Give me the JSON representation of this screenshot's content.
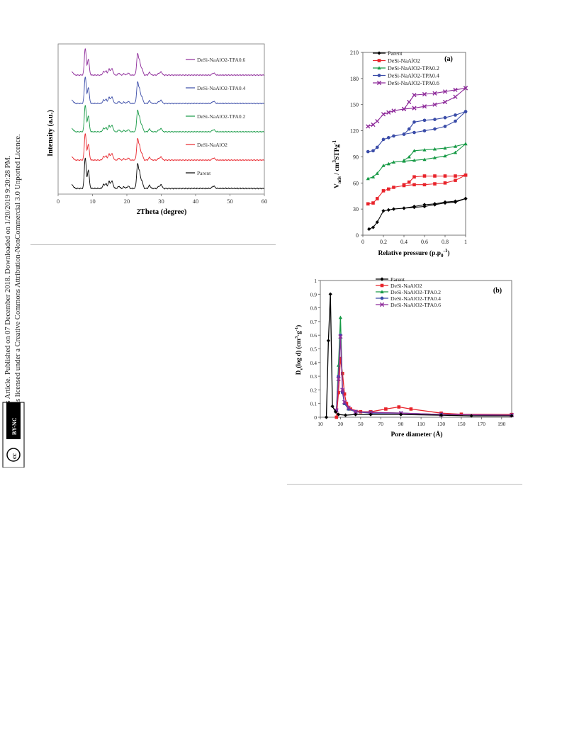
{
  "side_notice": {
    "line1": "Open Access Article. Published on 07 December 2018. Downloaded on 1/20/2019 9:20:28 PM.",
    "line2": "This article is licensed under a Creative Commons Attribution-NonCommercial 3.0 Unported Licence.",
    "badge_cc": "cc",
    "badge_by": "BY-NC"
  },
  "chart_data": [
    {
      "type": "line",
      "title": "",
      "xlabel": "2Theta (degree)",
      "ylabel": "Intensity (a.u.)",
      "xlim": [
        0,
        60
      ],
      "xticks": [
        0,
        10,
        20,
        30,
        40,
        50,
        60
      ],
      "grid": false,
      "peaks_2theta": [
        7.9,
        8.8,
        13.2,
        13.9,
        14.8,
        15.5,
        15.9,
        17.7,
        19.2,
        20.4,
        23.1,
        23.7,
        24.4,
        26.6,
        29.3,
        30.0,
        45.0,
        45.5
      ],
      "peak_rel_intensity": [
        1.0,
        0.6,
        0.12,
        0.15,
        0.22,
        0.18,
        0.12,
        0.07,
        0.05,
        0.08,
        0.75,
        0.5,
        0.25,
        0.1,
        0.07,
        0.12,
        0.06,
        0.05
      ],
      "series": [
        {
          "name": "Parent",
          "color": "#000000"
        },
        {
          "name": "DeSi-NaAlO2",
          "color": "#e8242b"
        },
        {
          "name": "DeSi-NaAlO2-TPA0.2",
          "color": "#179a46"
        },
        {
          "name": "DeSi-NaAlO2-TPA0.4",
          "color": "#3a4ca8"
        },
        {
          "name": "DeSi-NaAlO2-TPA0.6",
          "color": "#8e2b9a"
        }
      ]
    },
    {
      "type": "line",
      "title": "(a)",
      "xlabel_main": "Relative pressure (p.p",
      "xlabel_sub": "0",
      "xlabel_sup": "-1",
      "xlabel_end": ")",
      "ylabel_main": "V",
      "ylabel_sub": "ads",
      "ylabel_rest": " / cm",
      "ylabel_sup3": "3",
      "ylabel_stp": "STPg",
      "ylabel_sup1": "-1",
      "xlim": [
        0,
        1
      ],
      "ylim": [
        0,
        210
      ],
      "xticks": [
        0,
        0.2,
        0.4,
        0.6,
        0.8,
        1
      ],
      "yticks": [
        0,
        30,
        60,
        90,
        120,
        150,
        180,
        210
      ],
      "grid": false,
      "legend": "top-left",
      "series": [
        {
          "name": "Parent",
          "color": "#000000",
          "marker": "diamond",
          "adsorption": [
            [
              0.06,
              7
            ],
            [
              0.1,
              9
            ],
            [
              0.14,
              15
            ],
            [
              0.2,
              28
            ],
            [
              0.25,
              29
            ],
            [
              0.3,
              30
            ],
            [
              0.4,
              31
            ],
            [
              0.5,
              32
            ],
            [
              0.6,
              33
            ],
            [
              0.7,
              35
            ],
            [
              0.8,
              37
            ],
            [
              0.9,
              38
            ],
            [
              1.0,
              42
            ]
          ],
          "desorption": [
            [
              1.0,
              42
            ],
            [
              0.9,
              39
            ],
            [
              0.8,
              38
            ],
            [
              0.7,
              36
            ],
            [
              0.6,
              35
            ],
            [
              0.5,
              33
            ],
            [
              0.4,
              31
            ]
          ]
        },
        {
          "name": "DeSi-NaAlO2",
          "color": "#e8242b",
          "marker": "square",
          "adsorption": [
            [
              0.05,
              36
            ],
            [
              0.1,
              37
            ],
            [
              0.14,
              42
            ],
            [
              0.2,
              51
            ],
            [
              0.25,
              53
            ],
            [
              0.3,
              55
            ],
            [
              0.4,
              57
            ],
            [
              0.5,
              58
            ],
            [
              0.6,
              58
            ],
            [
              0.7,
              59
            ],
            [
              0.8,
              60
            ],
            [
              0.9,
              63
            ],
            [
              1.0,
              69
            ]
          ],
          "desorption": [
            [
              1.0,
              69
            ],
            [
              0.9,
              68
            ],
            [
              0.8,
              68
            ],
            [
              0.7,
              68
            ],
            [
              0.6,
              68
            ],
            [
              0.5,
              67
            ],
            [
              0.45,
              61
            ],
            [
              0.4,
              58
            ]
          ]
        },
        {
          "name": "DeSi-NaAlO2-TPA0.2",
          "color": "#179a46",
          "marker": "triangle",
          "adsorption": [
            [
              0.05,
              65
            ],
            [
              0.1,
              67
            ],
            [
              0.14,
              71
            ],
            [
              0.2,
              80
            ],
            [
              0.25,
              82
            ],
            [
              0.3,
              84
            ],
            [
              0.4,
              85
            ],
            [
              0.5,
              86
            ],
            [
              0.6,
              87
            ],
            [
              0.7,
              89
            ],
            [
              0.8,
              91
            ],
            [
              0.9,
              95
            ],
            [
              1.0,
              105
            ]
          ],
          "desorption": [
            [
              1.0,
              105
            ],
            [
              0.9,
              102
            ],
            [
              0.8,
              100
            ],
            [
              0.7,
              99
            ],
            [
              0.6,
              98
            ],
            [
              0.5,
              97
            ],
            [
              0.45,
              90
            ],
            [
              0.4,
              86
            ]
          ]
        },
        {
          "name": "DeSi-NaAlO2-TPA0.4",
          "color": "#3a4ca8",
          "marker": "circle",
          "adsorption": [
            [
              0.05,
              96
            ],
            [
              0.1,
              97
            ],
            [
              0.14,
              101
            ],
            [
              0.2,
              110
            ],
            [
              0.25,
              112
            ],
            [
              0.3,
              114
            ],
            [
              0.4,
              116
            ],
            [
              0.5,
              118
            ],
            [
              0.6,
              120
            ],
            [
              0.7,
              122
            ],
            [
              0.8,
              125
            ],
            [
              0.9,
              131
            ],
            [
              1.0,
              142
            ]
          ],
          "desorption": [
            [
              1.0,
              142
            ],
            [
              0.9,
              138
            ],
            [
              0.8,
              135
            ],
            [
              0.7,
              133
            ],
            [
              0.6,
              132
            ],
            [
              0.5,
              130
            ],
            [
              0.45,
              122
            ],
            [
              0.4,
              116
            ]
          ]
        },
        {
          "name": "DeSi-NaAlO2-TPA0.6",
          "color": "#8e2b9a",
          "marker": "cross",
          "adsorption": [
            [
              0.05,
              125
            ],
            [
              0.1,
              127
            ],
            [
              0.14,
              131
            ],
            [
              0.2,
              139
            ],
            [
              0.25,
              141
            ],
            [
              0.3,
              143
            ],
            [
              0.4,
              145
            ],
            [
              0.5,
              146
            ],
            [
              0.6,
              148
            ],
            [
              0.7,
              150
            ],
            [
              0.8,
              153
            ],
            [
              0.9,
              159
            ],
            [
              1.0,
              169
            ]
          ],
          "desorption": [
            [
              1.0,
              169
            ],
            [
              0.9,
              167
            ],
            [
              0.8,
              165
            ],
            [
              0.7,
              163
            ],
            [
              0.6,
              162
            ],
            [
              0.5,
              161
            ],
            [
              0.45,
              153
            ],
            [
              0.4,
              145
            ]
          ]
        }
      ]
    },
    {
      "type": "line",
      "title": "(b)",
      "xlabel": "Pore diameter (Å)",
      "ylabel_main": "D",
      "ylabel_sub": "v",
      "ylabel_mid": "(log d) (cm",
      "ylabel_sup3": "3",
      "ylabel_dot": "·g",
      "ylabel_sup1": "-1",
      "ylabel_end": ")",
      "xlim": [
        10,
        200
      ],
      "ylim": [
        0,
        1
      ],
      "xticks": [
        10,
        30,
        50,
        70,
        90,
        110,
        130,
        150,
        170,
        190
      ],
      "yticks": [
        0,
        0.1,
        0.2,
        0.3,
        0.4,
        0.5,
        0.6,
        0.7,
        0.8,
        0.9,
        1
      ],
      "grid": false,
      "legend": "top-center",
      "series": [
        {
          "name": "Parent",
          "color": "#000000",
          "marker": "diamond",
          "points": [
            [
              16,
              0
            ],
            [
              18,
              0.56
            ],
            [
              20,
              0.9
            ],
            [
              22,
              0.08
            ],
            [
              25,
              0.04
            ],
            [
              28,
              0.02
            ],
            [
              35,
              0.015
            ],
            [
              45,
              0.02
            ],
            [
              60,
              0.02
            ],
            [
              90,
              0.02
            ],
            [
              130,
              0.015
            ],
            [
              160,
              0.01
            ],
            [
              200,
              0.01
            ]
          ]
        },
        {
          "name": "DeSi-NaAlO2",
          "color": "#e8242b",
          "marker": "square",
          "points": [
            [
              26,
              0.0
            ],
            [
              28,
              0.18
            ],
            [
              30,
              0.43
            ],
            [
              32,
              0.32
            ],
            [
              34,
              0.17
            ],
            [
              36,
              0.1
            ],
            [
              40,
              0.06
            ],
            [
              50,
              0.04
            ],
            [
              60,
              0.04
            ],
            [
              75,
              0.06
            ],
            [
              88,
              0.075
            ],
            [
              100,
              0.06
            ],
            [
              130,
              0.03
            ],
            [
              150,
              0.022
            ],
            [
              200,
              0.02
            ]
          ]
        },
        {
          "name": "DeSi-NaAlO2-TPA0.2",
          "color": "#179a46",
          "marker": "triangle",
          "points": [
            [
              26,
              0.05
            ],
            [
              28,
              0.38
            ],
            [
              30,
              0.73
            ],
            [
              32,
              0.2
            ],
            [
              34,
              0.1
            ],
            [
              38,
              0.06
            ],
            [
              45,
              0.04
            ],
            [
              60,
              0.035
            ],
            [
              90,
              0.03
            ],
            [
              130,
              0.02
            ],
            [
              200,
              0.015
            ]
          ]
        },
        {
          "name": "DeSi-NaAlO2-TPA0.4",
          "color": "#3a4ca8",
          "marker": "circle",
          "points": [
            [
              26,
              0.05
            ],
            [
              28,
              0.3
            ],
            [
              30,
              0.6
            ],
            [
              32,
              0.18
            ],
            [
              34,
              0.1
            ],
            [
              38,
              0.06
            ],
            [
              45,
              0.04
            ],
            [
              60,
              0.03
            ],
            [
              90,
              0.03
            ],
            [
              130,
              0.02
            ],
            [
              200,
              0.015
            ]
          ]
        },
        {
          "name": "DeSi-NaAlO2-TPA0.6",
          "color": "#8e2b9a",
          "marker": "cross",
          "points": [
            [
              26,
              0.05
            ],
            [
              28,
              0.28
            ],
            [
              30,
              0.59
            ],
            [
              32,
              0.2
            ],
            [
              34,
              0.11
            ],
            [
              38,
              0.07
            ],
            [
              45,
              0.04
            ],
            [
              60,
              0.035
            ],
            [
              90,
              0.03
            ],
            [
              130,
              0.02
            ],
            [
              200,
              0.015
            ]
          ]
        }
      ]
    }
  ]
}
